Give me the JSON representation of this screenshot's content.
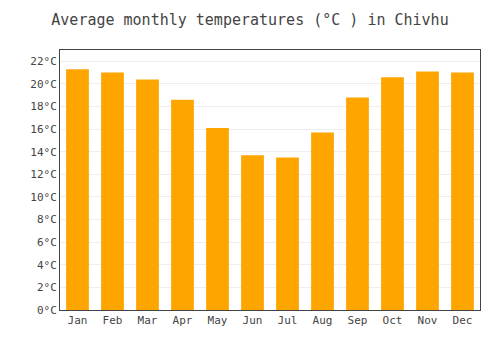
{
  "chart_data": {
    "type": "bar",
    "title": "Average monthly temperatures (°C ) in Chivhu",
    "categories": [
      "Jan",
      "Feb",
      "Mar",
      "Apr",
      "May",
      "Jun",
      "Jul",
      "Aug",
      "Sep",
      "Oct",
      "Nov",
      "Dec"
    ],
    "values": [
      21.3,
      21.0,
      20.4,
      18.6,
      16.1,
      13.7,
      13.5,
      15.7,
      18.8,
      20.6,
      21.1,
      21.0
    ],
    "color": "#FFA500",
    "ylim": [
      0,
      23
    ],
    "yticks": [
      {
        "value": 0,
        "label": "0°C"
      },
      {
        "value": 2,
        "label": "2°C"
      },
      {
        "value": 4,
        "label": "4°C"
      },
      {
        "value": 6,
        "label": "6°C"
      },
      {
        "value": 8,
        "label": "8°C"
      },
      {
        "value": 10,
        "label": "10°C"
      },
      {
        "value": 12,
        "label": "12°C"
      },
      {
        "value": 14,
        "label": "14°C"
      },
      {
        "value": 16,
        "label": "16°C"
      },
      {
        "value": 18,
        "label": "18°C"
      },
      {
        "value": 20,
        "label": "20°C"
      },
      {
        "value": 22,
        "label": "22°C"
      }
    ],
    "grid": true
  }
}
